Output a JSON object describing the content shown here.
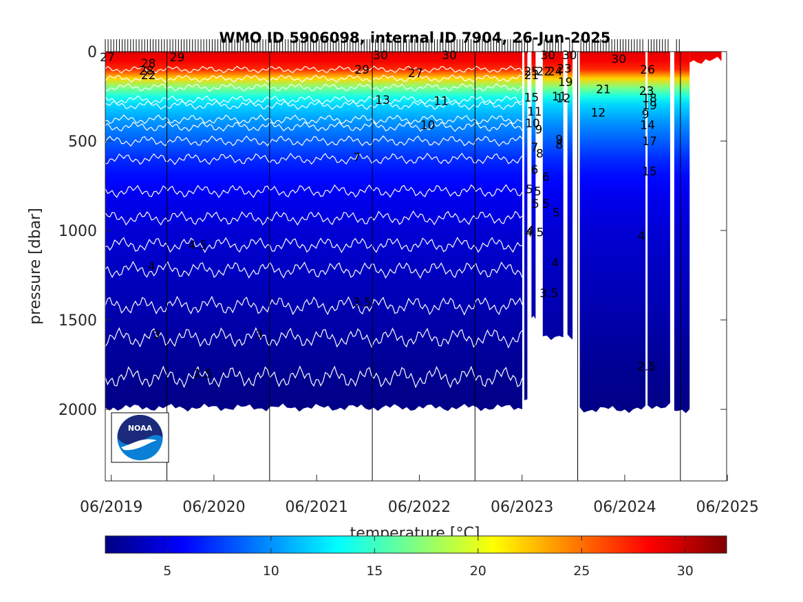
{
  "chart_data": {
    "type": "heatmap",
    "title": "WMO ID 5906098, internal ID 7904, 26-Jun-2025",
    "ylabel": "pressure [dbar]",
    "colorbar_label": "temperature [°C]",
    "ylim": [
      0,
      2400
    ],
    "y_reversed": true,
    "y_ticks": [
      0,
      500,
      1000,
      1500,
      2000
    ],
    "x_range": [
      2019.4,
      2025.45
    ],
    "x_ticks": [
      {
        "label": "06/2019",
        "value": 2019.458
      },
      {
        "label": "06/2020",
        "value": 2020.458
      },
      {
        "label": "06/2021",
        "value": 2021.458
      },
      {
        "label": "06/2022",
        "value": 2022.458
      },
      {
        "label": "06/2023",
        "value": 2023.458
      },
      {
        "label": "06/2024",
        "value": 2024.458
      },
      {
        "label": "06/2025",
        "value": 2025.458
      }
    ],
    "year_boundaries": [
      2020.0,
      2021.0,
      2022.0,
      2023.0,
      2024.0,
      2025.0
    ],
    "colorbar": {
      "range": [
        2,
        32
      ],
      "ticks": [
        5,
        10,
        15,
        20,
        25,
        30
      ],
      "colormap": "jet"
    },
    "temperature_profile": [
      {
        "p": 0,
        "t": 29
      },
      {
        "p": 50,
        "t": 28.5
      },
      {
        "p": 100,
        "t": 27
      },
      {
        "p": 150,
        "t": 22
      },
      {
        "p": 200,
        "t": 17
      },
      {
        "p": 250,
        "t": 14
      },
      {
        "p": 300,
        "t": 12
      },
      {
        "p": 400,
        "t": 10
      },
      {
        "p": 500,
        "t": 8.5
      },
      {
        "p": 600,
        "t": 7
      },
      {
        "p": 700,
        "t": 6
      },
      {
        "p": 800,
        "t": 5.3
      },
      {
        "p": 1000,
        "t": 4.5
      },
      {
        "p": 1200,
        "t": 4
      },
      {
        "p": 1400,
        "t": 3.5
      },
      {
        "p": 1600,
        "t": 3
      },
      {
        "p": 1800,
        "t": 2.5
      },
      {
        "p": 2000,
        "t": 2.2
      }
    ],
    "data_segments": [
      {
        "x0": 2019.4,
        "x1": 2023.46,
        "pmax": 1990
      },
      {
        "x0": 2023.48,
        "x1": 2023.51,
        "pmax": 1940
      },
      {
        "x0": 2023.55,
        "x1": 2023.59,
        "pmax": 1480
      },
      {
        "x0": 2023.66,
        "x1": 2023.86,
        "pmax": 1590
      },
      {
        "x0": 2023.9,
        "x1": 2023.95,
        "pmax": 1590
      },
      {
        "x0": 2024.02,
        "x1": 2024.66,
        "pmax": 2000
      },
      {
        "x0": 2024.68,
        "x1": 2024.9,
        "pmax": 1980
      },
      {
        "x0": 2024.94,
        "x1": 2025.09,
        "pmax": 2000
      },
      {
        "x0": 2025.09,
        "x1": 2025.4,
        "pmax": 50
      }
    ],
    "contour_levels": [
      {
        "p": 1820,
        "label": "2.5"
      },
      {
        "p": 1600,
        "label": "3"
      },
      {
        "p": 1420,
        "label": "3.5"
      },
      {
        "p": 1220,
        "label": "4"
      },
      {
        "p": 1080,
        "label": "4.5"
      },
      {
        "p": 930,
        "label": "5"
      },
      {
        "p": 780,
        "label": "6"
      },
      {
        "p": 600,
        "label": "7"
      },
      {
        "p": 500,
        "label": "8"
      },
      {
        "p": 420,
        "label": "9"
      },
      {
        "p": 380,
        "label": "10"
      },
      {
        "p": 300,
        "label": "11"
      },
      {
        "p": 270,
        "label": "13"
      },
      {
        "p": 200,
        "label": "15"
      },
      {
        "p": 150,
        "label": "21"
      },
      {
        "p": 100,
        "label": "27"
      }
    ],
    "contour_labels": [
      {
        "x": 2019.42,
        "p": 30,
        "text": "27"
      },
      {
        "x": 2019.82,
        "p": 65,
        "text": "28"
      },
      {
        "x": 2019.8,
        "p": 105,
        "text": "28"
      },
      {
        "x": 2019.82,
        "p": 130,
        "text": "22"
      },
      {
        "x": 2020.1,
        "p": 30,
        "text": "29"
      },
      {
        "x": 2021.9,
        "p": 100,
        "text": "29"
      },
      {
        "x": 2022.08,
        "p": 20,
        "text": "30"
      },
      {
        "x": 2022.42,
        "p": 120,
        "text": "27"
      },
      {
        "x": 2022.75,
        "p": 20,
        "text": "30"
      },
      {
        "x": 2023.71,
        "p": 20,
        "text": "30"
      },
      {
        "x": 2023.92,
        "p": 20,
        "text": "30"
      },
      {
        "x": 2024.4,
        "p": 40,
        "text": "30"
      },
      {
        "x": 2024.68,
        "p": 100,
        "text": "26"
      },
      {
        "x": 2022.1,
        "p": 270,
        "text": "13"
      },
      {
        "x": 2022.67,
        "p": 275,
        "text": "11"
      },
      {
        "x": 2022.54,
        "p": 410,
        "text": "10"
      },
      {
        "x": 2021.85,
        "p": 590,
        "text": "7"
      },
      {
        "x": 2023.55,
        "p": 130,
        "text": "21"
      },
      {
        "x": 2023.55,
        "p": 110,
        "text": "25"
      },
      {
        "x": 2023.67,
        "p": 110,
        "text": "22"
      },
      {
        "x": 2023.78,
        "p": 110,
        "text": "24"
      },
      {
        "x": 2023.87,
        "p": 95,
        "text": "23"
      },
      {
        "x": 2023.55,
        "p": 255,
        "text": "15"
      },
      {
        "x": 2023.58,
        "p": 335,
        "text": "11"
      },
      {
        "x": 2023.56,
        "p": 400,
        "text": "10"
      },
      {
        "x": 2023.62,
        "p": 435,
        "text": "9"
      },
      {
        "x": 2023.58,
        "p": 535,
        "text": "7"
      },
      {
        "x": 2023.63,
        "p": 570,
        "text": "8"
      },
      {
        "x": 2023.58,
        "p": 660,
        "text": "6"
      },
      {
        "x": 2023.53,
        "p": 770,
        "text": "5"
      },
      {
        "x": 2023.61,
        "p": 780,
        "text": "5"
      },
      {
        "x": 2023.59,
        "p": 850,
        "text": "5"
      },
      {
        "x": 2023.69,
        "p": 850,
        "text": "5"
      },
      {
        "x": 2023.69,
        "p": 700,
        "text": "6"
      },
      {
        "x": 2023.79,
        "p": 900,
        "text": "5"
      },
      {
        "x": 2023.54,
        "p": 1000,
        "text": "4"
      },
      {
        "x": 2023.58,
        "p": 1010,
        "text": "4.5"
      },
      {
        "x": 2023.78,
        "p": 1180,
        "text": "4"
      },
      {
        "x": 2023.72,
        "p": 1350,
        "text": "3.5"
      },
      {
        "x": 2023.82,
        "p": 250,
        "text": "11"
      },
      {
        "x": 2023.86,
        "p": 260,
        "text": "12"
      },
      {
        "x": 2023.82,
        "p": 520,
        "text": "8"
      },
      {
        "x": 2023.82,
        "p": 490,
        "text": "9"
      },
      {
        "x": 2023.88,
        "p": 170,
        "text": "19"
      },
      {
        "x": 2024.25,
        "p": 210,
        "text": "21"
      },
      {
        "x": 2024.2,
        "p": 340,
        "text": "12"
      },
      {
        "x": 2024.67,
        "p": 220,
        "text": "23"
      },
      {
        "x": 2024.7,
        "p": 260,
        "text": "18"
      },
      {
        "x": 2024.7,
        "p": 300,
        "text": "19"
      },
      {
        "x": 2024.66,
        "p": 350,
        "text": "9"
      },
      {
        "x": 2024.68,
        "p": 410,
        "text": "14"
      },
      {
        "x": 2024.7,
        "p": 500,
        "text": "17"
      },
      {
        "x": 2024.7,
        "p": 670,
        "text": "15"
      },
      {
        "x": 2024.62,
        "p": 1030,
        "text": "4"
      },
      {
        "x": 2024.67,
        "p": 1760,
        "text": "2.5"
      },
      {
        "x": 2020.3,
        "p": 1080,
        "text": "4.5"
      },
      {
        "x": 2019.85,
        "p": 1200,
        "text": "4"
      },
      {
        "x": 2021.9,
        "p": 1400,
        "text": "3.5"
      },
      {
        "x": 2019.9,
        "p": 1580,
        "text": "3"
      },
      {
        "x": 2020.9,
        "p": 1580,
        "text": "3"
      },
      {
        "x": 2020.35,
        "p": 1800,
        "text": "2.5"
      }
    ]
  }
}
